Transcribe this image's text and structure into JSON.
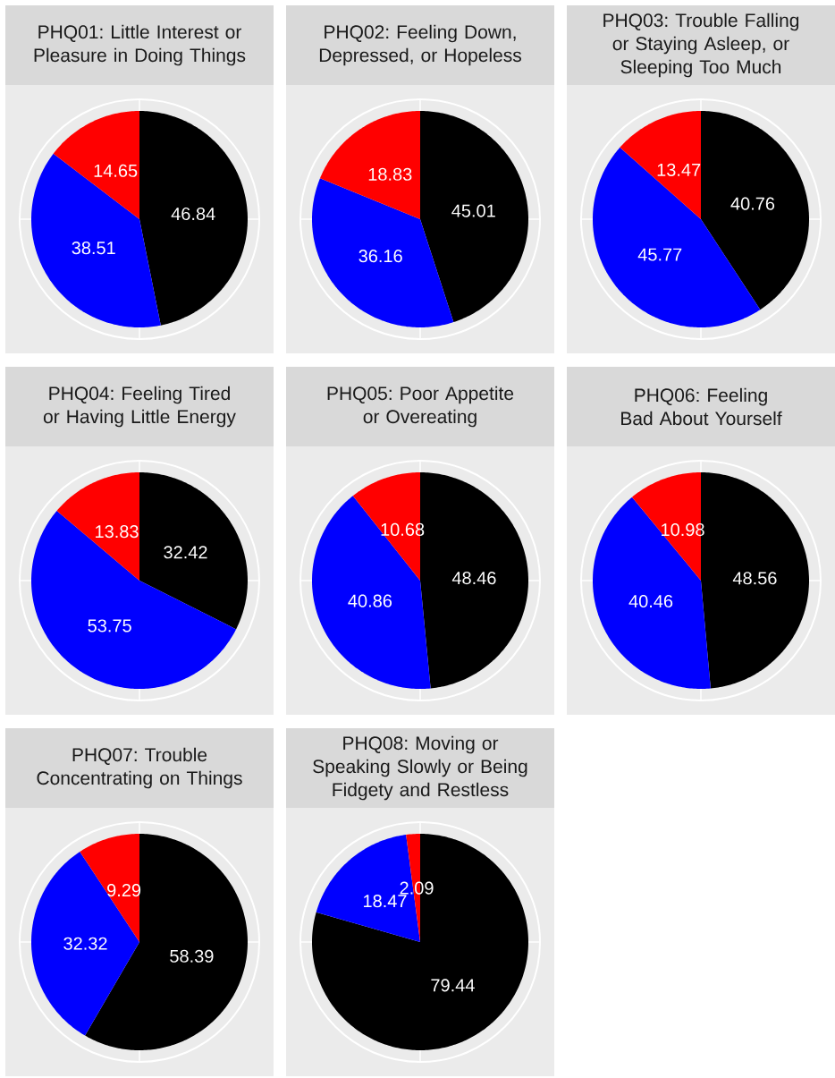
{
  "chart_data": [
    {
      "type": "pie",
      "title": "PHQ01: Little Interest or Pleasure in Doing Things",
      "categories": [
        null,
        null,
        null
      ],
      "values": [
        46.84,
        38.51,
        14.65
      ],
      "colors": [
        "#000000",
        "#0000ff",
        "#ff0000"
      ],
      "data_labels": true
    },
    {
      "type": "pie",
      "title": "PHQ02: Feeling Down, Depressed, or Hopeless",
      "categories": [
        null,
        null,
        null
      ],
      "values": [
        45.01,
        36.16,
        18.83
      ],
      "colors": [
        "#000000",
        "#0000ff",
        "#ff0000"
      ],
      "data_labels": true
    },
    {
      "type": "pie",
      "title": "PHQ03: Trouble Falling or Staying Asleep, or Sleeping Too Much",
      "categories": [
        null,
        null,
        null
      ],
      "values": [
        40.76,
        45.77,
        13.47
      ],
      "colors": [
        "#000000",
        "#0000ff",
        "#ff0000"
      ],
      "data_labels": true
    },
    {
      "type": "pie",
      "title": "PHQ04: Feeling Tired or Having Little Energy",
      "categories": [
        null,
        null,
        null
      ],
      "values": [
        32.42,
        53.75,
        13.83
      ],
      "colors": [
        "#000000",
        "#0000ff",
        "#ff0000"
      ],
      "data_labels": true
    },
    {
      "type": "pie",
      "title": "PHQ05: Poor Appetite or Overeating",
      "categories": [
        null,
        null,
        null
      ],
      "values": [
        48.46,
        40.86,
        10.68
      ],
      "colors": [
        "#000000",
        "#0000ff",
        "#ff0000"
      ],
      "data_labels": true
    },
    {
      "type": "pie",
      "title": "PHQ06: Feeling Bad About Yourself",
      "categories": [
        null,
        null,
        null
      ],
      "values": [
        48.56,
        40.46,
        10.98
      ],
      "colors": [
        "#000000",
        "#0000ff",
        "#ff0000"
      ],
      "data_labels": true
    },
    {
      "type": "pie",
      "title": "PHQ07: Trouble Concentrating on Things",
      "categories": [
        null,
        null,
        null
      ],
      "values": [
        58.39,
        32.32,
        9.29
      ],
      "colors": [
        "#000000",
        "#0000ff",
        "#ff0000"
      ],
      "data_labels": true
    },
    {
      "type": "pie",
      "title": "PHQ08: Moving or Speaking Slowly or Being Fidgety and Restless",
      "categories": [
        null,
        null,
        null
      ],
      "values": [
        79.44,
        18.47,
        2.09
      ],
      "colors": [
        "#000000",
        "#0000ff",
        "#ff0000"
      ],
      "data_labels": true
    }
  ]
}
